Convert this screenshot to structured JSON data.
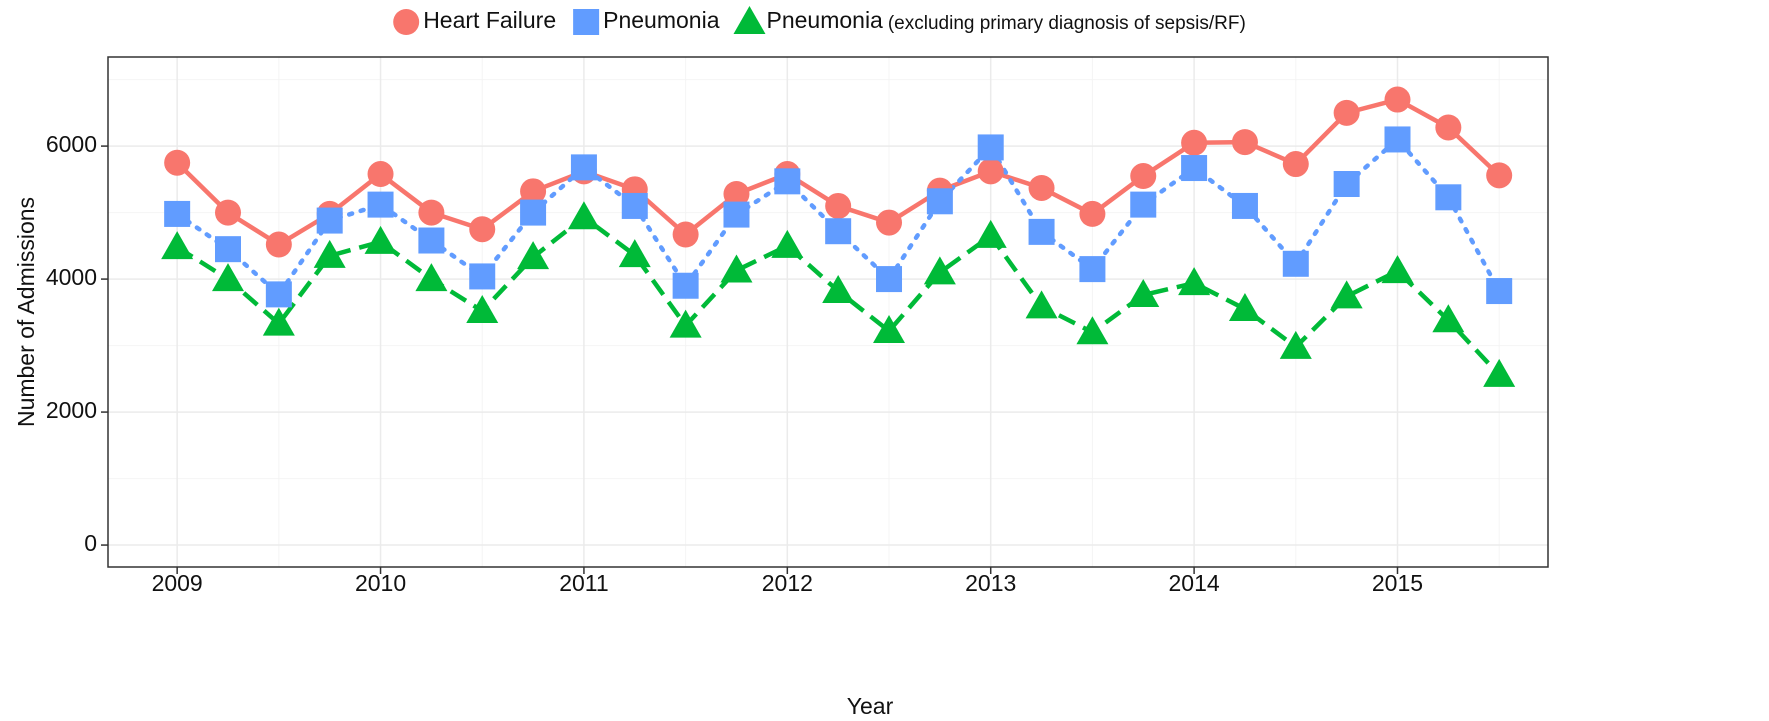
{
  "chart_data": {
    "type": "line",
    "x_label": "Year",
    "y_label": "Number of Admissions",
    "x": [
      2009,
      2009.25,
      2009.5,
      2009.75,
      2010,
      2010.25,
      2010.5,
      2010.75,
      2011,
      2011.25,
      2011.5,
      2011.75,
      2012,
      2012.25,
      2012.5,
      2012.75,
      2013,
      2013.25,
      2013.5,
      2013.75,
      2014,
      2014.25,
      2014.5,
      2014.75,
      2015,
      2015.25,
      2015.5
    ],
    "series": [
      {
        "name": "Heart Failure",
        "color": "#F8766D",
        "marker": "circle",
        "linestyle": "solid",
        "values": [
          5750,
          5000,
          4520,
          4980,
          5580,
          5000,
          4750,
          5320,
          5620,
          5350,
          4670,
          5280,
          5580,
          5100,
          4850,
          5330,
          5620,
          5370,
          4980,
          5550,
          6050,
          6060,
          5730,
          6500,
          6700,
          6280,
          5560
        ]
      },
      {
        "name": "Pneumonia",
        "color": "#619CFF",
        "marker": "square",
        "linestyle": "dotted",
        "values": [
          4980,
          4450,
          3770,
          4880,
          5120,
          4580,
          4040,
          5000,
          5680,
          5100,
          3900,
          4970,
          5470,
          4720,
          4000,
          5170,
          5980,
          4710,
          4150,
          5120,
          5670,
          5100,
          4230,
          5430,
          6100,
          5230,
          3820
        ]
      },
      {
        "name": "Pneumonia",
        "note": "(excluding primary diagnosis of sepsis/RF)",
        "color": "#00BA38",
        "marker": "triangle",
        "linestyle": "dashed",
        "values": [
          4480,
          4000,
          3330,
          4350,
          4560,
          4000,
          3520,
          4330,
          4930,
          4360,
          3300,
          4130,
          4500,
          3820,
          3220,
          4100,
          4650,
          3590,
          3200,
          3760,
          3940,
          3550,
          2980,
          3740,
          4120,
          3380,
          2560
        ]
      }
    ],
    "xlim": [
      2008.66,
      2015.74
    ],
    "ylim": [
      -330,
      7340
    ],
    "xticks": [
      2009,
      2010,
      2011,
      2012,
      2013,
      2014,
      2015
    ],
    "yticks": [
      0,
      2000,
      4000,
      6000
    ],
    "grid": true,
    "legend": "top"
  }
}
